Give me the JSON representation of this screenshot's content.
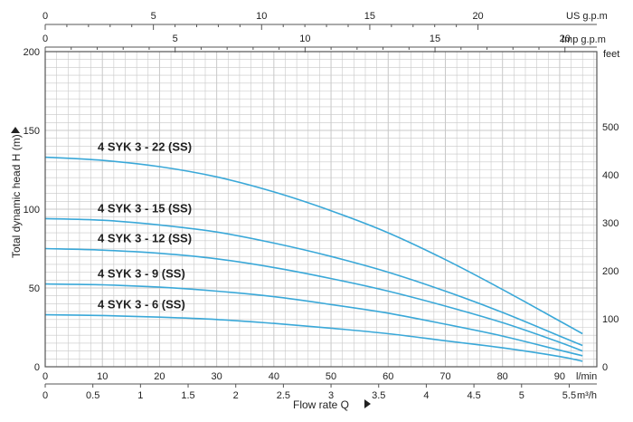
{
  "chart_data": {
    "type": "line",
    "xlabel": "Flow rate Q",
    "ylabel": "Total dynamic head H (m)",
    "xlim": [
      0,
      96.5
    ],
    "ylim": [
      0,
      200
    ],
    "colors": {
      "curve": "#3aa8d8",
      "grid": "#c8c8c8",
      "frame": "#555555",
      "text": "#222222"
    },
    "axes": {
      "bottom_lmin": {
        "unit": "l/min",
        "ticks": [
          0,
          10,
          20,
          30,
          40,
          50,
          60,
          70,
          80,
          90
        ]
      },
      "bottom_m3h": {
        "unit": "m³/h",
        "ticks": [
          "0",
          "0.5",
          "1",
          "1.5",
          "2",
          "2.5",
          "3",
          "3.5",
          "4",
          "4.5",
          "5",
          "5.5"
        ]
      },
      "top_usgpm": {
        "unit": "US g.p.m",
        "ticks": [
          0,
          5,
          10,
          15,
          20
        ]
      },
      "top_impgpm": {
        "unit": "Imp g.p.m",
        "ticks": [
          0,
          5,
          10,
          15,
          20
        ]
      },
      "left_m": {
        "ticks": [
          0,
          50,
          100,
          150,
          200
        ]
      },
      "right_feet": {
        "unit": "feet",
        "ticks": [
          0,
          100,
          200,
          300,
          400,
          500
        ]
      }
    },
    "series": [
      {
        "name": "4 SYK 3 - 22  (SS)",
        "x": [
          0,
          10,
          20,
          30,
          40,
          50,
          60,
          70,
          80,
          90,
          94
        ],
        "y": [
          133,
          131,
          127,
          120.5,
          111,
          99,
          85,
          68,
          49,
          29,
          21
        ]
      },
      {
        "name": "4 SYK 3 - 15 (SS)",
        "x": [
          0,
          10,
          20,
          30,
          40,
          50,
          60,
          70,
          80,
          90,
          94
        ],
        "y": [
          94,
          93,
          90,
          85.5,
          78.5,
          70,
          60,
          48,
          34.5,
          19.5,
          13.5
        ]
      },
      {
        "name": "4 SYK 3 - 12 (SS)",
        "x": [
          0,
          10,
          20,
          30,
          40,
          50,
          60,
          70,
          80,
          90,
          94
        ],
        "y": [
          75,
          74,
          72,
          68.5,
          63,
          56,
          48,
          38.5,
          28,
          15.5,
          10
        ]
      },
      {
        "name": "4 SYK 3 - 9 (SS)",
        "x": [
          0,
          10,
          20,
          30,
          40,
          50,
          60,
          70,
          80,
          90,
          94
        ],
        "y": [
          52.5,
          52,
          50.5,
          48,
          44.5,
          39.5,
          34,
          27,
          19.5,
          10.5,
          7
        ]
      },
      {
        "name": "4 SYK 3 - 6 (SS)",
        "x": [
          0,
          10,
          20,
          30,
          40,
          50,
          60,
          70,
          80,
          90,
          94
        ],
        "y": [
          33,
          32.5,
          31.5,
          30,
          27.5,
          24.5,
          21,
          16.5,
          12,
          6.5,
          3.5
        ]
      }
    ]
  }
}
